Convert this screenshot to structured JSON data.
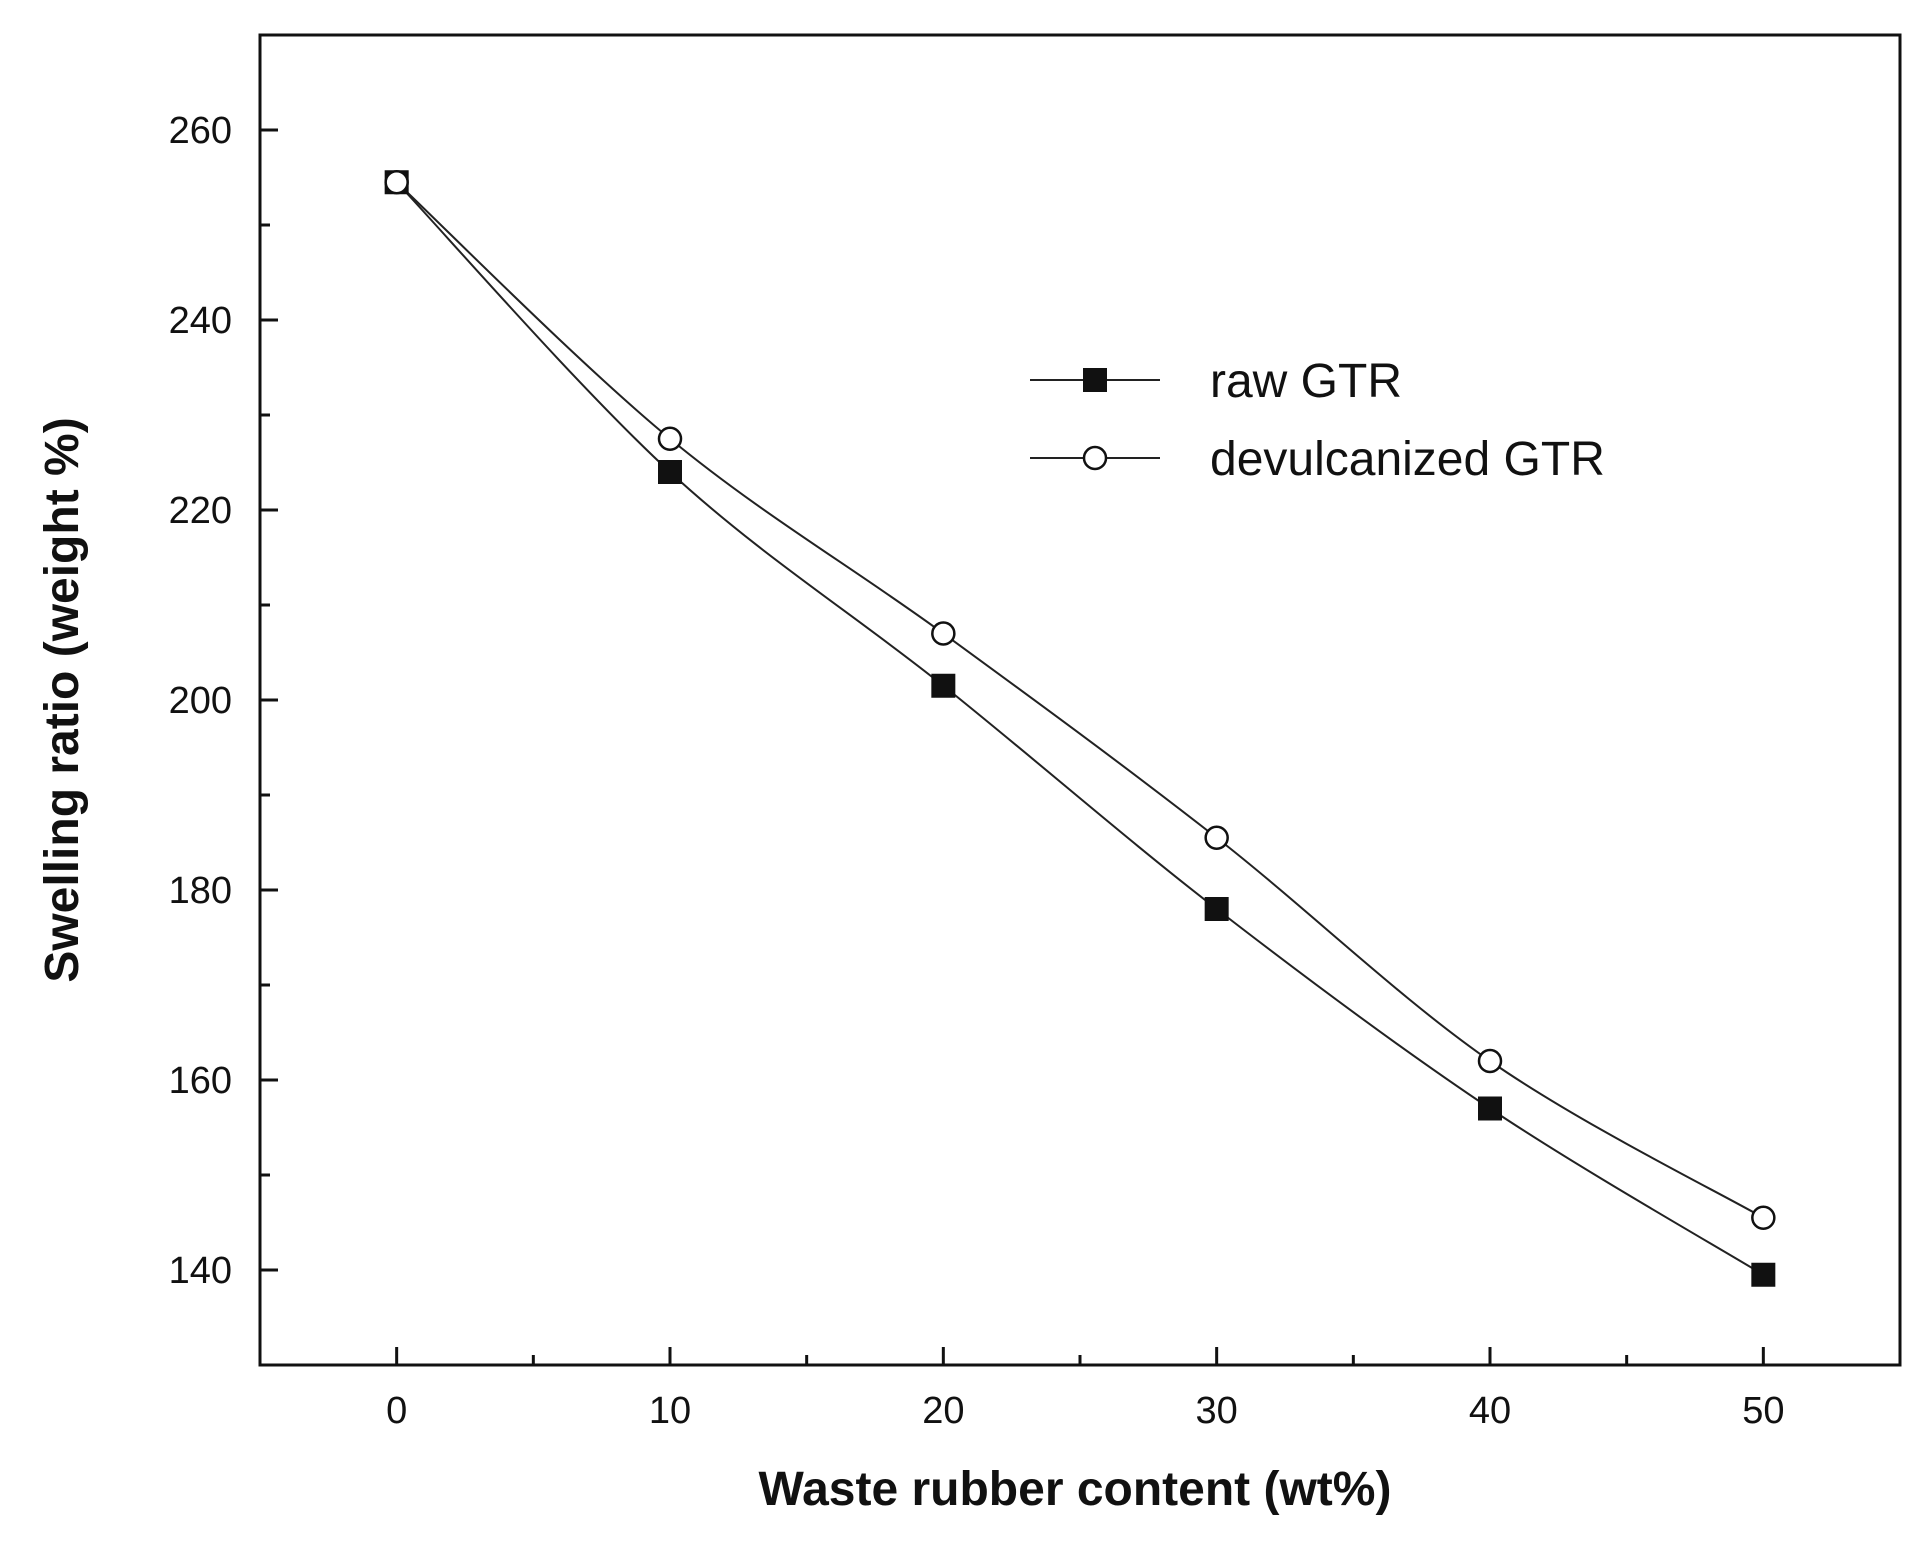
{
  "chart_data": {
    "type": "line",
    "title": "",
    "xlabel": "Waste rubber content (wt%)",
    "ylabel": "Swelling ratio (weight %)",
    "xlim": [
      -5,
      55
    ],
    "ylim": [
      130,
      270
    ],
    "xticks": [
      0,
      10,
      20,
      30,
      40,
      50
    ],
    "yticks": [
      140,
      160,
      180,
      200,
      220,
      240,
      260
    ],
    "grid": false,
    "legend_position": "upper-right",
    "x": [
      0,
      10,
      20,
      30,
      40,
      50
    ],
    "series": [
      {
        "name": "raw GTR",
        "marker": "filled-square",
        "values": [
          254.5,
          224,
          201.5,
          178,
          157,
          139.5
        ]
      },
      {
        "name": "devulcanized GTR",
        "marker": "open-circle",
        "values": [
          254.5,
          227.5,
          207,
          185.5,
          162,
          145.5
        ]
      }
    ]
  }
}
